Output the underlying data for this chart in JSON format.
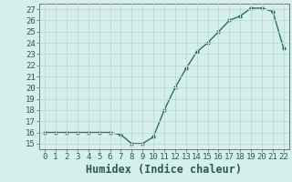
{
  "x": [
    0,
    1,
    2,
    3,
    4,
    5,
    6,
    7,
    8,
    9,
    10,
    11,
    12,
    13,
    14,
    15,
    16,
    17,
    18,
    19,
    20,
    21,
    22
  ],
  "y": [
    16,
    16,
    16,
    16,
    16,
    16,
    16,
    15.8,
    15,
    15,
    15.6,
    18,
    20,
    21.7,
    23.2,
    24,
    25,
    26,
    26.4,
    27.1,
    27.1,
    26.8,
    23.5
  ],
  "line_color": "#2d6e60",
  "marker": "o",
  "marker_size": 2.5,
  "line_width": 1.0,
  "xlabel": "Humidex (Indice chaleur)",
  "xlim": [
    -0.5,
    22.5
  ],
  "ylim": [
    14.5,
    27.5
  ],
  "yticks": [
    15,
    16,
    17,
    18,
    19,
    20,
    21,
    22,
    23,
    24,
    25,
    26,
    27
  ],
  "xticks": [
    0,
    1,
    2,
    3,
    4,
    5,
    6,
    7,
    8,
    9,
    10,
    11,
    12,
    13,
    14,
    15,
    16,
    17,
    18,
    19,
    20,
    21,
    22
  ],
  "bg_color": "#d5f0eb",
  "grid_color": "#c0ddd8",
  "tick_label_size": 6.5,
  "xlabel_size": 8.5
}
